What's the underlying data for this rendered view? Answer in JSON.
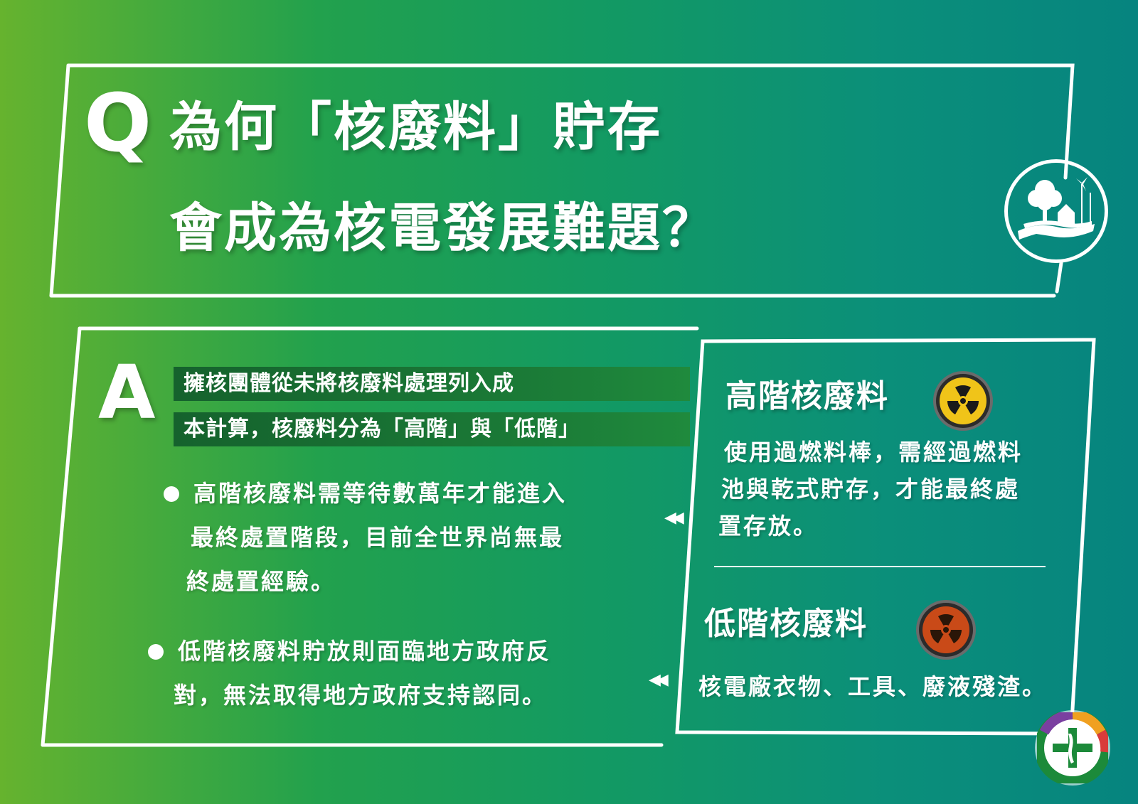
{
  "question": {
    "letter": "Q",
    "line1": "為何「核廢料」貯存",
    "line2": "會成為核電發展難題？"
  },
  "answer": {
    "letter": "A",
    "intro_line1": "擁核團體從未將核廢料處理列入成",
    "intro_line2": "本計算，核廢料分為「高階」與「低階」",
    "bullet1": [
      "高階核廢料需等待數萬年才能進入",
      "最終處置階段，目前全世界尚無最",
      "終處置經驗。"
    ],
    "bullet2": [
      "低階核廢料貯放則面臨地方政府反",
      "對，無法取得地方政府支持認同。"
    ]
  },
  "high_level": {
    "title": "高階核廢料",
    "lines": [
      "使用過燃料棒，需經過燃料",
      "池與乾式貯存，才能最終處",
      "置存放。"
    ]
  },
  "low_level": {
    "title": "低階核廢料",
    "lines": [
      "核電廠衣物、工具、廢液殘渣。"
    ]
  },
  "icons": {
    "radiation_high": "radiation-icon-yellow",
    "radiation_low": "radiation-icon-red",
    "environment_badge": "tree-hand-icon",
    "party_logo": "dpp-logo-icon"
  },
  "colors": {
    "gradient_left": "#66b32e",
    "gradient_right": "#06847f",
    "intro_band": "#15622d",
    "radiation_yellow": "#f0c419",
    "radiation_red": "#c94a18"
  }
}
